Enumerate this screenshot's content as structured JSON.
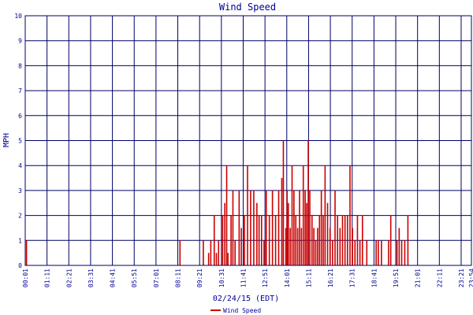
{
  "chart_data": {
    "type": "bar",
    "title": "Wind Speed",
    "xlabel": "02/24/15 (EDT)",
    "ylabel": "MPH",
    "ylim": [
      0,
      10
    ],
    "y_ticks": [
      "0",
      "1",
      "2",
      "3",
      "4",
      "5",
      "6",
      "7",
      "8",
      "9",
      "10"
    ],
    "x_ticks": [
      "00:01",
      "01:11",
      "02:21",
      "03:31",
      "04:41",
      "05:51",
      "07:01",
      "08:11",
      "09:21",
      "10:31",
      "11:41",
      "12:51",
      "14:01",
      "15:11",
      "16:21",
      "17:31",
      "18:41",
      "19:51",
      "21:01",
      "22:11",
      "23:21",
      "23:54"
    ],
    "grid": true,
    "legend_position": "bottom",
    "series": [
      {
        "name": "Wind Speed",
        "color": "#cc0000",
        "x": [
          "00:05",
          "08:18",
          "09:33",
          "09:50",
          "09:57",
          "10:08",
          "10:15",
          "10:22",
          "10:35",
          "10:42",
          "10:48",
          "10:52",
          "11:02",
          "11:08",
          "11:15",
          "11:28",
          "11:35",
          "11:45",
          "11:55",
          "12:05",
          "12:15",
          "12:25",
          "12:32",
          "12:40",
          "12:48",
          "12:55",
          "13:05",
          "13:15",
          "13:25",
          "13:35",
          "13:45",
          "13:50",
          "13:58",
          "14:02",
          "14:06",
          "14:12",
          "14:18",
          "14:24",
          "14:30",
          "14:36",
          "14:42",
          "14:48",
          "14:54",
          "15:00",
          "15:05",
          "15:10",
          "15:15",
          "15:22",
          "15:28",
          "15:34",
          "15:40",
          "15:46",
          "15:52",
          "15:58",
          "16:04",
          "16:12",
          "16:20",
          "16:28",
          "16:36",
          "16:44",
          "16:52",
          "17:00",
          "17:08",
          "17:16",
          "17:24",
          "17:32",
          "17:40",
          "17:48",
          "17:56",
          "18:04",
          "18:18",
          "18:48",
          "18:55",
          "19:05",
          "19:28",
          "19:35",
          "19:55",
          "20:02",
          "20:10",
          "20:20",
          "20:30"
        ],
        "values": [
          1,
          1,
          1,
          0.5,
          1,
          2,
          0.5,
          1,
          2,
          2.5,
          4,
          0.5,
          2,
          3,
          1,
          3,
          1.5,
          2,
          4,
          3,
          3,
          2.5,
          2,
          2,
          1,
          3,
          2,
          3,
          2,
          3,
          3.5,
          5,
          1.5,
          3,
          2.5,
          1.5,
          4,
          3,
          2,
          1.5,
          3,
          1.5,
          4,
          3,
          2.5,
          5,
          3,
          2,
          1.5,
          1,
          1.5,
          2,
          3,
          2,
          4,
          2.5,
          1.5,
          1,
          3,
          2,
          1.5,
          2,
          2,
          2,
          4,
          1.5,
          1,
          2,
          1,
          2,
          1,
          1,
          1,
          1,
          1,
          2,
          1,
          1.5,
          1,
          1,
          2
        ]
      }
    ]
  }
}
